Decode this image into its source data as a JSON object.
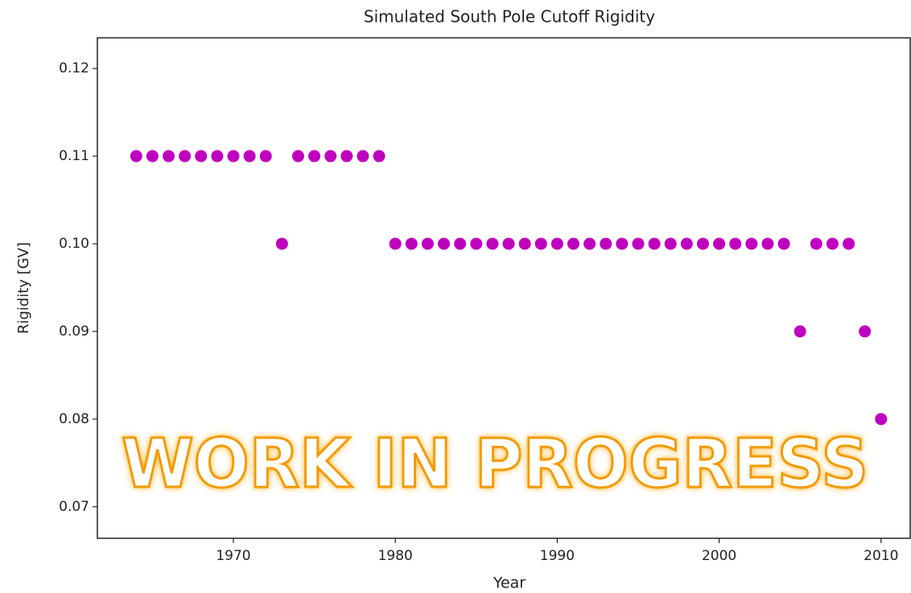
{
  "chart_data": {
    "type": "scatter",
    "title": "Simulated South Pole Cutoff Rigidity",
    "x_label": "Year",
    "y_label": "Rigidity [GV]",
    "annotation": "WORK IN PROGRESS",
    "color": "#bf00bf",
    "x": [
      1964,
      1965,
      1966,
      1967,
      1968,
      1969,
      1970,
      1971,
      1972,
      1973,
      1974,
      1975,
      1976,
      1977,
      1978,
      1979,
      1980,
      1981,
      1982,
      1983,
      1984,
      1985,
      1986,
      1987,
      1988,
      1989,
      1990,
      1991,
      1992,
      1993,
      1994,
      1995,
      1996,
      1997,
      1998,
      1999,
      2000,
      2001,
      2002,
      2003,
      2004,
      2005,
      2006,
      2007,
      2008,
      2009,
      2010
    ],
    "values": [
      0.11,
      0.11,
      0.11,
      0.11,
      0.11,
      0.11,
      0.11,
      0.11,
      0.11,
      0.1,
      0.11,
      0.11,
      0.11,
      0.11,
      0.11,
      0.11,
      0.1,
      0.1,
      0.1,
      0.1,
      0.1,
      0.1,
      0.1,
      0.1,
      0.1,
      0.1,
      0.1,
      0.1,
      0.1,
      0.1,
      0.1,
      0.1,
      0.1,
      0.1,
      0.1,
      0.1,
      0.1,
      0.1,
      0.1,
      0.1,
      0.1,
      0.09,
      0.1,
      0.1,
      0.1,
      0.09,
      0.08
    ],
    "xlim": [
      1961.6,
      2011.8
    ],
    "xticks": [
      1970,
      1980,
      1990,
      2000,
      2010
    ],
    "ylim": [
      0.0664,
      0.1235
    ],
    "yticks": [
      {
        "value": 0.07,
        "label": "0.07"
      },
      {
        "value": 0.08,
        "label": "0.08"
      },
      {
        "value": 0.09,
        "label": "0.09"
      },
      {
        "value": 0.1,
        "label": "0.10"
      },
      {
        "value": 0.11,
        "label": "0.11"
      },
      {
        "value": 0.12,
        "label": "0.12"
      }
    ],
    "grid": false
  }
}
